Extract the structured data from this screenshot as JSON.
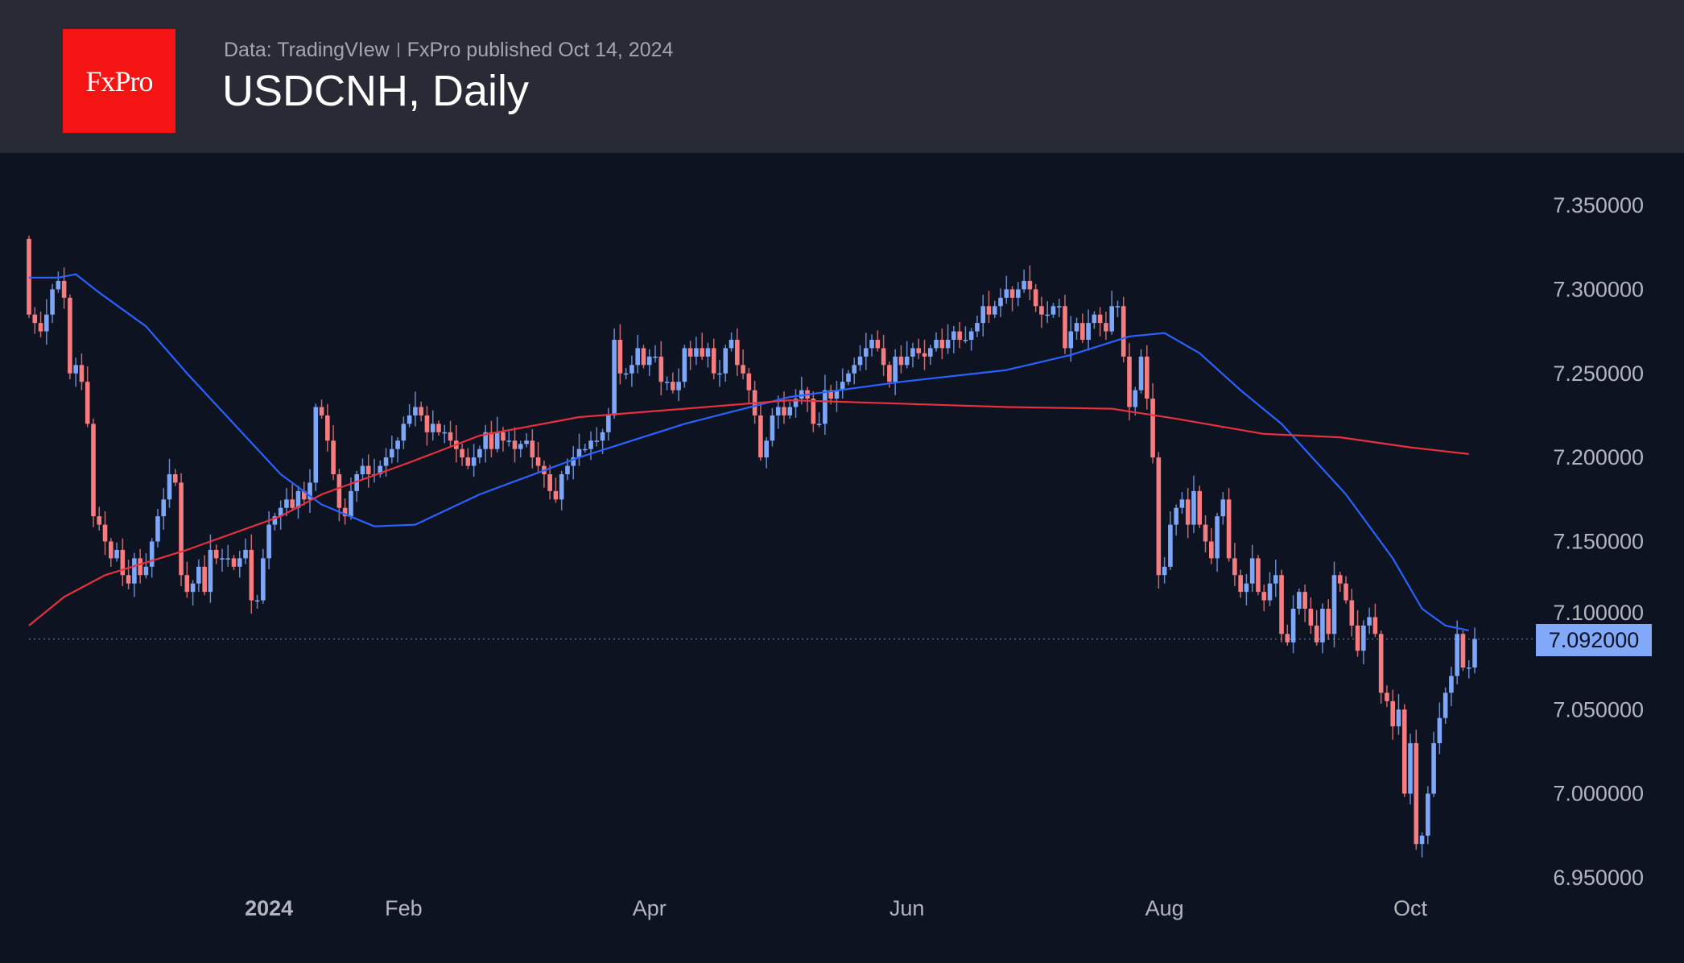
{
  "header": {
    "logo_text": "FxPro",
    "source": "Data: TradingVIew",
    "published": "FxPro published Oct 14, 2024",
    "title": "USDCNH, Daily"
  },
  "colors": {
    "up": "#7ea6f8",
    "down": "#f77c80",
    "ma_fast": "#2962ff",
    "ma_slow": "#e8303f",
    "background": "#0d1320",
    "header": "#282a36",
    "price_tag": "#82a8fa"
  },
  "chart_data": {
    "type": "candlestick",
    "title": "USDCNH, Daily",
    "ylim": [
      6.95,
      7.35
    ],
    "y_ticks": [
      "7.350000",
      "7.300000",
      "7.250000",
      "7.200000",
      "7.150000",
      "7.100000",
      "7.050000",
      "7.000000",
      "6.950000"
    ],
    "x_ticks": [
      {
        "label": "2024",
        "bar": 41,
        "bold": true
      },
      {
        "label": "Feb",
        "bar": 64
      },
      {
        "label": "Apr",
        "bar": 106
      },
      {
        "label": "Jun",
        "bar": 150
      },
      {
        "label": "Aug",
        "bar": 194
      },
      {
        "label": "Oct",
        "bar": 236
      }
    ],
    "last_price": "7.092000",
    "last_value": 7.092,
    "first_open": 7.33,
    "closes": [
      7.285,
      7.28,
      7.275,
      7.285,
      7.3,
      7.305,
      7.295,
      7.25,
      7.255,
      7.245,
      7.22,
      7.165,
      7.16,
      7.15,
      7.14,
      7.145,
      7.13,
      7.125,
      7.14,
      7.13,
      7.135,
      7.15,
      7.165,
      7.175,
      7.19,
      7.185,
      7.13,
      7.12,
      7.125,
      7.135,
      7.12,
      7.145,
      7.14,
      7.14,
      7.14,
      7.135,
      7.14,
      7.145,
      7.115,
      7.115,
      7.14,
      7.16,
      7.165,
      7.17,
      7.175,
      7.17,
      7.18,
      7.175,
      7.185,
      7.23,
      7.225,
      7.21,
      7.19,
      7.17,
      7.165,
      7.18,
      7.19,
      7.195,
      7.19,
      7.19,
      7.195,
      7.2,
      7.205,
      7.21,
      7.22,
      7.225,
      7.23,
      7.225,
      7.215,
      7.22,
      7.215,
      7.215,
      7.21,
      7.205,
      7.2,
      7.195,
      7.2,
      7.205,
      7.215,
      7.205,
      7.215,
      7.21,
      7.21,
      7.205,
      7.208,
      7.21,
      7.2,
      7.195,
      7.19,
      7.18,
      7.175,
      7.19,
      7.195,
      7.2,
      7.205,
      7.205,
      7.21,
      7.21,
      7.215,
      7.225,
      7.27,
      7.25,
      7.25,
      7.255,
      7.265,
      7.255,
      7.26,
      7.26,
      7.245,
      7.245,
      7.24,
      7.245,
      7.265,
      7.26,
      7.265,
      7.26,
      7.265,
      7.25,
      7.25,
      7.265,
      7.27,
      7.255,
      7.25,
      7.24,
      7.225,
      7.2,
      7.21,
      7.225,
      7.23,
      7.225,
      7.23,
      7.235,
      7.24,
      7.235,
      7.22,
      7.22,
      7.24,
      7.235,
      7.24,
      7.245,
      7.25,
      7.255,
      7.26,
      7.265,
      7.27,
      7.265,
      7.255,
      7.245,
      7.26,
      7.255,
      7.26,
      7.265,
      7.262,
      7.26,
      7.265,
      7.27,
      7.265,
      7.27,
      7.275,
      7.27,
      7.27,
      7.275,
      7.28,
      7.29,
      7.285,
      7.29,
      7.295,
      7.3,
      7.295,
      7.3,
      7.305,
      7.3,
      7.29,
      7.285,
      7.285,
      7.29,
      7.29,
      7.265,
      7.275,
      7.28,
      7.27,
      7.28,
      7.285,
      7.28,
      7.275,
      7.29,
      7.29,
      7.26,
      7.23,
      7.24,
      7.26,
      7.235,
      7.2,
      7.13,
      7.135,
      7.16,
      7.17,
      7.175,
      7.16,
      7.18,
      7.16,
      7.15,
      7.14,
      7.165,
      7.175,
      7.14,
      7.13,
      7.12,
      7.125,
      7.14,
      7.12,
      7.115,
      7.125,
      7.13,
      7.095,
      7.09,
      7.11,
      7.12,
      7.11,
      7.1,
      7.09,
      7.11,
      7.095,
      7.13,
      7.125,
      7.115,
      7.1,
      7.085,
      7.1,
      7.105,
      7.095,
      7.06,
      7.055,
      7.04,
      7.05,
      7.0,
      7.03,
      6.97,
      6.975,
      7.0,
      7.03,
      7.045,
      7.06,
      7.07,
      7.095,
      7.075,
      7.075,
      7.092
    ],
    "series": [
      {
        "name": "MA fast",
        "points": [
          [
            0,
            7.307
          ],
          [
            5,
            7.307
          ],
          [
            8,
            7.309
          ],
          [
            12,
            7.298
          ],
          [
            20,
            7.278
          ],
          [
            27,
            7.25
          ],
          [
            35,
            7.22
          ],
          [
            43,
            7.19
          ],
          [
            50,
            7.172
          ],
          [
            59,
            7.159
          ],
          [
            66,
            7.16
          ],
          [
            77,
            7.178
          ],
          [
            94,
            7.2
          ],
          [
            112,
            7.22
          ],
          [
            130,
            7.236
          ],
          [
            149,
            7.245
          ],
          [
            167,
            7.252
          ],
          [
            178,
            7.261
          ],
          [
            188,
            7.272
          ],
          [
            194,
            7.274
          ],
          [
            200,
            7.262
          ],
          [
            207,
            7.24
          ],
          [
            214,
            7.22
          ],
          [
            225,
            7.178
          ],
          [
            233,
            7.14
          ],
          [
            238,
            7.11
          ],
          [
            242,
            7.1
          ],
          [
            246,
            7.097
          ]
        ]
      },
      {
        "name": "MA slow",
        "points": [
          [
            0,
            7.1
          ],
          [
            6,
            7.117
          ],
          [
            13,
            7.13
          ],
          [
            27,
            7.145
          ],
          [
            43,
            7.165
          ],
          [
            50,
            7.178
          ],
          [
            65,
            7.197
          ],
          [
            77,
            7.213
          ],
          [
            94,
            7.224
          ],
          [
            112,
            7.229
          ],
          [
            130,
            7.234
          ],
          [
            149,
            7.232
          ],
          [
            167,
            7.23
          ],
          [
            185,
            7.229
          ],
          [
            196,
            7.223
          ],
          [
            211,
            7.214
          ],
          [
            224,
            7.212
          ],
          [
            236,
            7.206
          ],
          [
            246,
            7.202
          ]
        ]
      }
    ]
  }
}
